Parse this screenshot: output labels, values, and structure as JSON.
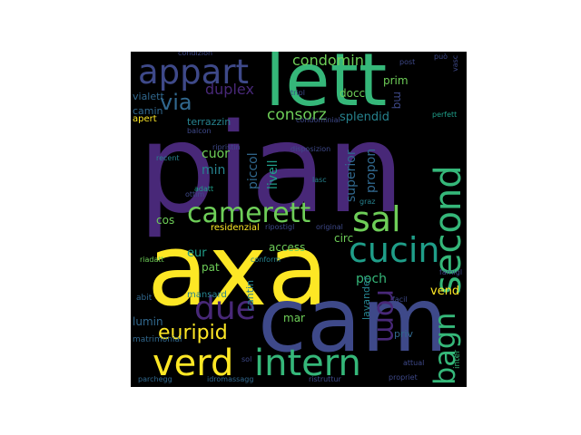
{
  "palette": {
    "dark_purple": "#440154",
    "indigo": "#482878",
    "blue": "#3e4989",
    "slate": "#31688e",
    "teal": "#26828e",
    "green_teal": "#1f9e89",
    "green": "#35b779",
    "lime": "#6ece58",
    "yellow": "#fde725"
  },
  "words": [
    {
      "text": "pian",
      "color": "#482878"
    },
    {
      "text": "axa",
      "color": "#fde725"
    },
    {
      "text": "cam",
      "color": "#3e4989"
    },
    {
      "text": "lett",
      "color": "#35b779"
    },
    {
      "text": "appart",
      "color": "#3e4989"
    },
    {
      "text": "condomin",
      "color": "#6ece58"
    },
    {
      "text": "second",
      "color": "#35b779"
    },
    {
      "text": "sal",
      "color": "#6ece58"
    },
    {
      "text": "cucin",
      "color": "#1f9e89"
    },
    {
      "text": "camerett",
      "color": "#6ece58"
    },
    {
      "text": "intern",
      "color": "#35b779"
    },
    {
      "text": "verd",
      "color": "#fde725"
    },
    {
      "text": "due",
      "color": "#482878"
    },
    {
      "text": "bagn",
      "color": "#35b779"
    },
    {
      "text": "rom",
      "color": "#482878"
    },
    {
      "text": "via",
      "color": "#31688e"
    },
    {
      "text": "duplex",
      "color": "#482878"
    },
    {
      "text": "consorz",
      "color": "#6ece58"
    },
    {
      "text": "splendid",
      "color": "#26828e"
    },
    {
      "text": "euripid",
      "color": "#fde725"
    },
    {
      "text": "vialett",
      "color": "#31688e"
    },
    {
      "text": "camin",
      "color": "#31688e"
    },
    {
      "text": "apert",
      "color": "#fde725"
    },
    {
      "text": "terrazzin",
      "color": "#26828e"
    },
    {
      "text": "docc",
      "color": "#6ece58"
    },
    {
      "text": "prim",
      "color": "#6ece58"
    },
    {
      "text": "mq",
      "color": "#3e4989"
    },
    {
      "text": "cuor",
      "color": "#6ece58"
    },
    {
      "text": "min",
      "color": "#26828e"
    },
    {
      "text": "piccol",
      "color": "#31688e"
    },
    {
      "text": "livell",
      "color": "#1f9e89"
    },
    {
      "text": "superior",
      "color": "#31688e"
    },
    {
      "text": "propon",
      "color": "#31688e"
    },
    {
      "text": "cos",
      "color": "#6ece58"
    },
    {
      "text": "eur",
      "color": "#1f9e89"
    },
    {
      "text": "pat",
      "color": "#6ece58"
    },
    {
      "text": "access",
      "color": "#6ece58"
    },
    {
      "text": "circ",
      "color": "#6ece58"
    },
    {
      "text": "poch",
      "color": "#35b779"
    },
    {
      "text": "vend",
      "color": "#fde725"
    },
    {
      "text": "residenzial",
      "color": "#fde725"
    },
    {
      "text": "compost",
      "color": "#31688e"
    },
    {
      "text": "abit",
      "color": "#31688e"
    },
    {
      "text": "mansard",
      "color": "#26828e"
    },
    {
      "text": "cantin",
      "color": "#26828e"
    },
    {
      "text": "mar",
      "color": "#6ece58"
    },
    {
      "text": "lumin",
      "color": "#31688e"
    },
    {
      "text": "lavander",
      "color": "#26828e"
    },
    {
      "text": "priv",
      "color": "#31688e"
    },
    {
      "text": "matrimonial",
      "color": "#31688e"
    },
    {
      "text": "inter",
      "color": "#35b779"
    },
    {
      "text": "parchegg",
      "color": "#31688e"
    },
    {
      "text": "idromassagg",
      "color": "#31688e"
    },
    {
      "text": "ristruttur",
      "color": "#3e4989"
    },
    {
      "text": "propriet",
      "color": "#3e4989"
    },
    {
      "text": "attual",
      "color": "#3e4989"
    },
    {
      "text": "facil",
      "color": "#3e4989"
    },
    {
      "text": "famigl",
      "color": "#3e4989"
    },
    {
      "text": "riadatt",
      "color": "#6ece58"
    },
    {
      "text": "ottim",
      "color": "#3e4989"
    },
    {
      "text": "adatt",
      "color": "#1f9e89"
    },
    {
      "text": "recent",
      "color": "#26828e"
    },
    {
      "text": "balcon",
      "color": "#3e4989"
    },
    {
      "text": "ripristin",
      "color": "#3e4989"
    },
    {
      "text": "disposizion",
      "color": "#3e4989"
    },
    {
      "text": "lasc",
      "color": "#26828e"
    },
    {
      "text": "graz",
      "color": "#26828e"
    },
    {
      "text": "ripostigl",
      "color": "#3e4989"
    },
    {
      "text": "original",
      "color": "#3e4989"
    },
    {
      "text": "conform",
      "color": "#26828e"
    },
    {
      "text": "condizion",
      "color": "#3e4989"
    },
    {
      "text": "post",
      "color": "#3e4989"
    },
    {
      "text": "può",
      "color": "#3e4989"
    },
    {
      "text": "vasc",
      "color": "#3e4989"
    },
    {
      "text": "perfett",
      "color": "#1f9e89"
    },
    {
      "text": "tripl",
      "color": "#3e4989"
    },
    {
      "text": "condominial",
      "color": "#3e4989"
    },
    {
      "text": "sol",
      "color": "#3e4989"
    }
  ]
}
